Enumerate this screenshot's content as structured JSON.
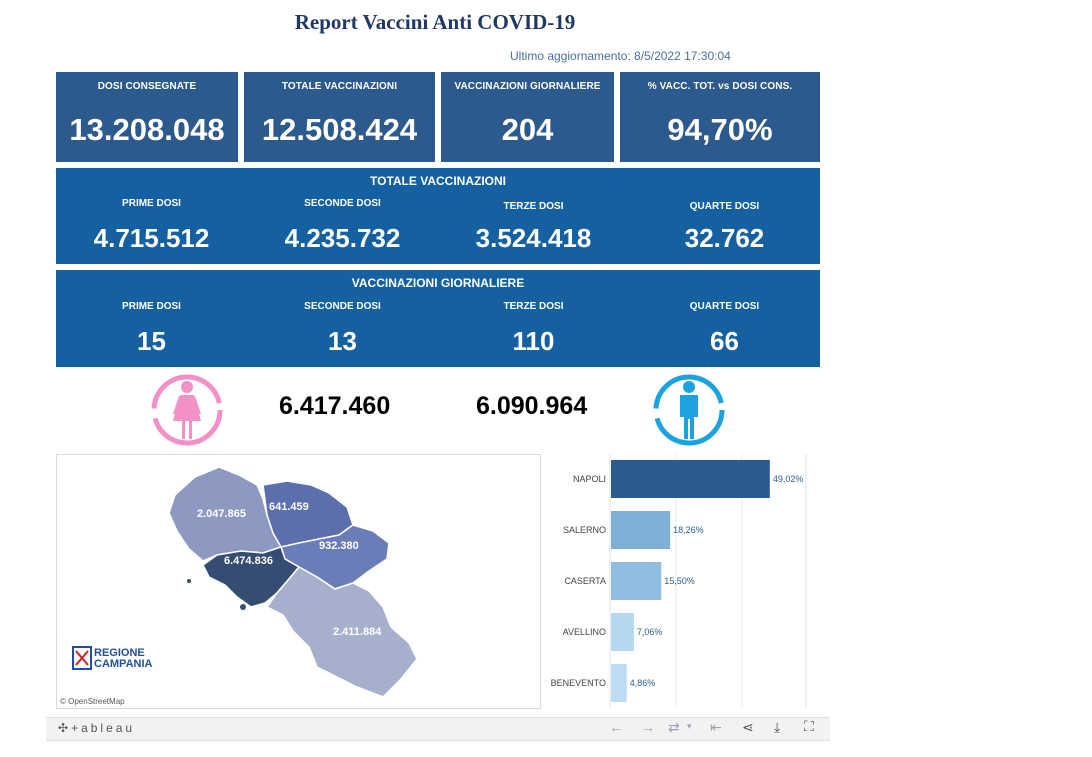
{
  "header": {
    "title": "Report Vaccini Anti COVID-19",
    "updated": "Ultimo aggiornamento: 8/5/2022 17:30:04"
  },
  "kpis": [
    {
      "label": "DOSI  CONSEGNATE",
      "value": "13.208.048"
    },
    {
      "label": "TOTALE VACCINAZIONI",
      "value": "12.508.424"
    },
    {
      "label": "VACCINAZIONI GIORNALIERE",
      "value": "204"
    },
    {
      "label": "% VACC. TOT. vs DOSI CONS.",
      "value": "94,70%"
    }
  ],
  "totals": {
    "heading": "TOTALE VACCINAZIONI",
    "items": [
      {
        "label": "PRIME DOSI",
        "value": "4.715.512"
      },
      {
        "label": "SECONDE DOSI",
        "value": "4.235.732"
      },
      {
        "label": "TERZE DOSI",
        "value": "3.524.418"
      },
      {
        "label": "QUARTE DOSI",
        "value": "32.762"
      }
    ]
  },
  "daily": {
    "heading": "VACCINAZIONI GIORNALIERE",
    "items": [
      {
        "label": "PRIME DOSI",
        "value": "15"
      },
      {
        "label": "SECONDE DOSI",
        "value": "13"
      },
      {
        "label": "TERZE DOSI",
        "value": "110"
      },
      {
        "label": "QUARTE DOSI",
        "value": "66"
      }
    ]
  },
  "gender": {
    "female_value": "6.417.460",
    "male_value": "6.090.964",
    "female_color": "#f291c6",
    "male_color": "#1ba3e0"
  },
  "map": {
    "provinces": [
      {
        "name": "Caserta",
        "value": "2.047.865",
        "color": "#8d99c0"
      },
      {
        "name": "Benevento",
        "value": "641.459",
        "color": "#5b6fad"
      },
      {
        "name": "Avellino",
        "value": "932.380",
        "color": "#6a7db8"
      },
      {
        "name": "Napoli",
        "value": "6.474.836",
        "color": "#354d73"
      },
      {
        "name": "Salerno",
        "value": "2.411.884",
        "color": "#a6b0cd"
      }
    ],
    "logo_line1": "REGIONE",
    "logo_line2": "CAMPANIA",
    "credit": "© OpenStreetMap"
  },
  "chart_data": {
    "type": "bar",
    "orientation": "horizontal",
    "categories": [
      "NAPOLI",
      "SALERNO",
      "CASERTA",
      "AVELLINO",
      "BENEVENTO"
    ],
    "values": [
      49.02,
      18.26,
      15.5,
      7.06,
      4.86
    ],
    "labels": [
      "49,02%",
      "18,26%",
      "15,50%",
      "7,06%",
      "4,86%"
    ],
    "colors": [
      "#2d5a8c",
      "#7eb0d6",
      "#8fbde0",
      "#b5d7ef",
      "#bcdcf1"
    ],
    "xlim": [
      0,
      50
    ]
  },
  "footer": {
    "brand": "+ableau"
  }
}
